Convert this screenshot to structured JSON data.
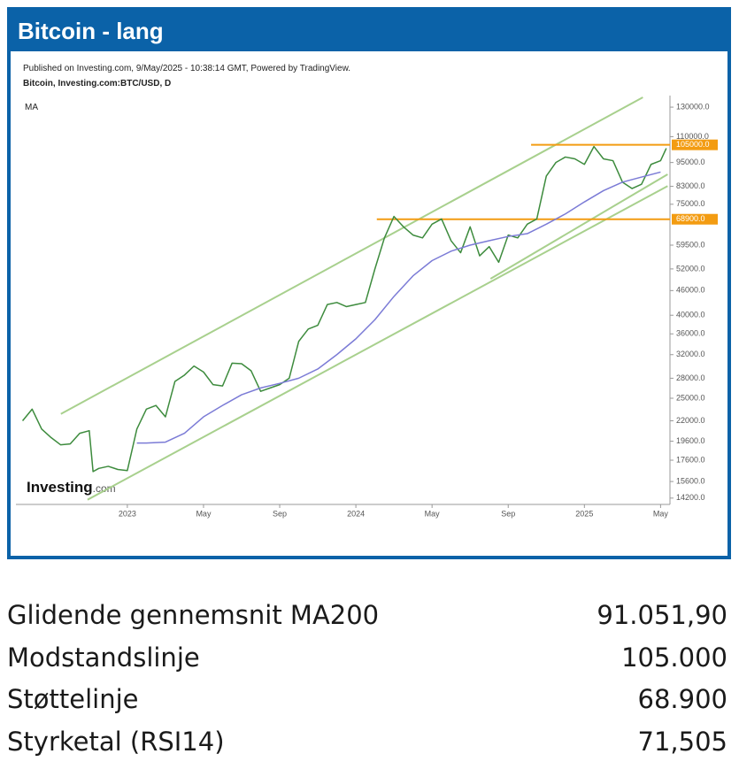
{
  "header": {
    "title": "Bitcoin - lang"
  },
  "chart_data": {
    "type": "line",
    "source": "Published on Investing.com, 9/May/2025 - 10:38:14 GMT, Powered by TradingView.",
    "subtitle": "Bitcoin, Investing.com:BTC/USD, D",
    "indicator": "MA",
    "logo": "Investing",
    "logo_suffix": ".com",
    "log_scale": true,
    "xlim": [
      -5.85,
      28.4
    ],
    "xticks": [
      {
        "value": 0,
        "label": "2023"
      },
      {
        "value": 4,
        "label": "May"
      },
      {
        "value": 8,
        "label": "Sep"
      },
      {
        "value": 12,
        "label": "2024"
      },
      {
        "value": 16,
        "label": "May"
      },
      {
        "value": 20,
        "label": "Sep"
      },
      {
        "value": 24,
        "label": "2025"
      },
      {
        "value": 28,
        "label": "May"
      }
    ],
    "ylim": [
      13700,
      138800
    ],
    "yticks": [
      {
        "value": 130000,
        "label": "130000.0"
      },
      {
        "value": 110000,
        "label": "110000.0"
      },
      {
        "value": 95000,
        "label": "95000.0"
      },
      {
        "value": 83000,
        "label": "83000.0"
      },
      {
        "value": 75000,
        "label": "75000.0"
      },
      {
        "value": 59500,
        "label": "59500.0"
      },
      {
        "value": 52000,
        "label": "52000.0"
      },
      {
        "value": 46000,
        "label": "46000.0"
      },
      {
        "value": 40000,
        "label": "40000.0"
      },
      {
        "value": 36000,
        "label": "36000.0"
      },
      {
        "value": 32000,
        "label": "32000.0"
      },
      {
        "value": 28000,
        "label": "28000.0"
      },
      {
        "value": 25000,
        "label": "25000.0"
      },
      {
        "value": 22000,
        "label": "22000.0"
      },
      {
        "value": 19600,
        "label": "19600.0"
      },
      {
        "value": 17600,
        "label": "17600.0"
      },
      {
        "value": 15600,
        "label": "15600.0"
      },
      {
        "value": 14200,
        "label": "14200.0"
      }
    ],
    "series": [
      {
        "color": "#3d8b3d",
        "x": [
          -5.5,
          -5,
          -4.5,
          -4,
          -3.5,
          -3,
          -2.5,
          -2,
          -1.8,
          -1.5,
          -1,
          -0.5,
          0,
          0.5,
          1,
          1.5,
          2,
          2.5,
          3,
          3.5,
          4,
          4.5,
          5,
          5.5,
          6,
          6.5,
          7,
          7.5,
          8,
          8.5,
          9,
          9.5,
          10,
          10.5,
          11,
          11.5,
          12,
          12.5,
          13,
          13.5,
          14,
          14.5,
          15,
          15.5,
          16,
          16.5,
          17,
          17.5,
          18,
          18.5,
          19,
          19.5,
          20,
          20.5,
          21,
          21.5,
          22,
          22.5,
          23,
          23.5,
          24,
          24.5,
          25,
          25.5,
          26,
          26.5,
          27,
          27.5,
          28,
          28.3
        ],
        "values": [
          22000,
          23500,
          21000,
          20000,
          19200,
          19300,
          20500,
          20800,
          16500,
          16800,
          17000,
          16700,
          16600,
          21000,
          23500,
          24000,
          22500,
          27500,
          28500,
          30000,
          29000,
          27000,
          26800,
          30500,
          30400,
          29200,
          26000,
          26500,
          27000,
          28000,
          34500,
          37000,
          37800,
          42500,
          43000,
          42000,
          42500,
          43000,
          52000,
          62000,
          70000,
          66000,
          63000,
          62000,
          67000,
          69000,
          61000,
          57000,
          66000,
          56000,
          59000,
          54000,
          63000,
          62000,
          67000,
          69000,
          88000,
          95000,
          98000,
          97000,
          94000,
          104000,
          97000,
          96000,
          85000,
          82000,
          84000,
          94000,
          96000,
          103000
        ]
      },
      {
        "color": "#7b7bd6",
        "x": [
          0.5,
          1,
          2,
          3,
          4,
          5,
          6,
          7,
          8,
          9,
          10,
          11,
          12,
          13,
          14,
          15,
          16,
          17,
          18,
          19,
          20,
          21,
          22,
          23,
          24,
          25,
          26,
          27,
          28
        ],
        "values": [
          19400,
          19400,
          19500,
          20500,
          22500,
          24000,
          25500,
          26500,
          27200,
          28000,
          29500,
          32000,
          35000,
          39000,
          44500,
          50000,
          54500,
          57500,
          59500,
          61000,
          62500,
          63500,
          67000,
          71000,
          76000,
          81000,
          85000,
          87500,
          90000
        ]
      }
    ],
    "trend_lines": [
      {
        "color": "#a8d08d",
        "x": [
          -3.49,
          27.07
        ],
        "y": [
          22870,
          137400
        ]
      },
      {
        "color": "#a8d08d",
        "x": [
          -2.09,
          28.37
        ],
        "y": [
          14070,
          83140
        ]
      },
      {
        "color": "#a8d08d",
        "x": [
          19.07,
          28.37
        ],
        "y": [
          49180,
          88860
        ]
      }
    ],
    "levels": [
      {
        "color": "#f39c12",
        "x_start": 21.2,
        "value": 105000,
        "label": "105000.0"
      },
      {
        "color": "#f39c12",
        "x_start": 13.1,
        "value": 68900,
        "label": "68900.0"
      }
    ]
  },
  "table": {
    "rows": [
      [
        "Glidende gennemsnit MA200",
        "91.051,90"
      ],
      [
        "Modstandslinje",
        "105.000"
      ],
      [
        "Støttelinje",
        "68.900"
      ],
      [
        "Styrketal (RSI14)",
        "71,505"
      ]
    ]
  }
}
